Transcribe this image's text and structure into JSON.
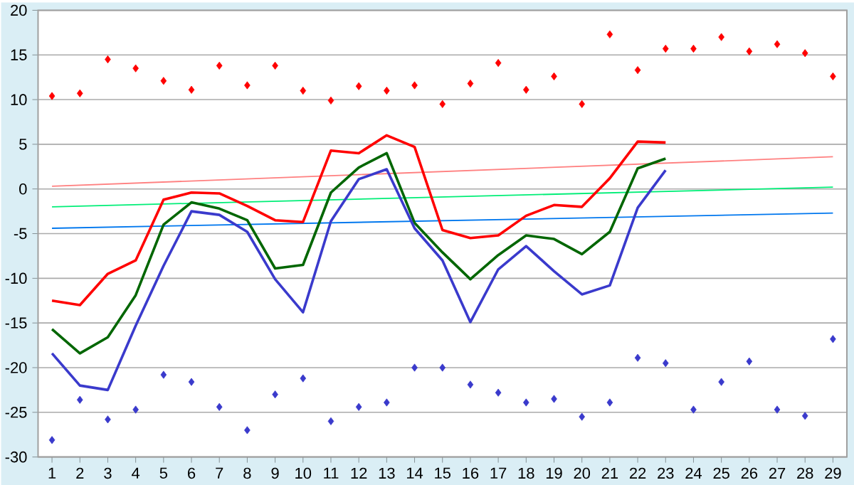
{
  "chart_data": {
    "type": "line",
    "x": [
      1,
      2,
      3,
      4,
      5,
      6,
      7,
      8,
      9,
      10,
      11,
      12,
      13,
      14,
      15,
      16,
      17,
      18,
      19,
      20,
      21,
      22,
      23,
      24,
      25,
      26,
      27,
      28,
      29
    ],
    "xlim": [
      0.5,
      29.5
    ],
    "xticks": [
      1,
      2,
      3,
      4,
      5,
      6,
      7,
      8,
      9,
      10,
      11,
      12,
      13,
      14,
      15,
      16,
      17,
      18,
      19,
      20,
      21,
      22,
      23,
      24,
      25,
      26,
      27,
      28,
      29
    ],
    "ylim": [
      -30,
      20
    ],
    "yticks": [
      -30,
      -25,
      -20,
      -15,
      -10,
      -5,
      0,
      5,
      10,
      15,
      20
    ],
    "grid": "y",
    "line_style": "solid",
    "series": [
      {
        "color": "#ff8080",
        "values": [
          0.3,
          null,
          null,
          null,
          null,
          null,
          null,
          null,
          null,
          null,
          null,
          null,
          null,
          null,
          null,
          null,
          null,
          null,
          null,
          null,
          null,
          null,
          null,
          null,
          null,
          null,
          null,
          null,
          3.6
        ]
      },
      {
        "color": "#00ee77",
        "values": [
          -2.0,
          null,
          null,
          null,
          null,
          null,
          null,
          null,
          null,
          null,
          null,
          null,
          null,
          null,
          null,
          null,
          null,
          null,
          null,
          null,
          null,
          null,
          null,
          null,
          null,
          null,
          null,
          null,
          0.2
        ]
      },
      {
        "color": "#0077ee",
        "values": [
          -4.4,
          null,
          null,
          null,
          null,
          null,
          null,
          null,
          null,
          null,
          null,
          null,
          null,
          null,
          null,
          null,
          null,
          null,
          null,
          null,
          null,
          null,
          null,
          null,
          null,
          null,
          null,
          null,
          -2.7
        ]
      },
      {
        "color": "#ff0000",
        "values": [
          -12.5,
          -13.0,
          -9.5,
          -8.0,
          -1.2,
          -0.4,
          -0.5,
          -1.9,
          -3.5,
          -3.7,
          4.3,
          4.0,
          6.0,
          4.7,
          -4.6,
          -5.5,
          -5.2,
          -3.0,
          -1.8,
          -2.0,
          1.2,
          5.3,
          5.2,
          null,
          null,
          null,
          null,
          null,
          null
        ]
      },
      {
        "color": "#006600",
        "values": [
          -15.7,
          -18.4,
          -16.6,
          -11.9,
          -4.0,
          -1.5,
          -2.2,
          -3.5,
          -8.9,
          -8.5,
          -0.4,
          2.4,
          4.0,
          -3.8,
          -7.1,
          -10.1,
          -7.4,
          -5.2,
          -5.6,
          -7.3,
          -4.8,
          2.3,
          3.4,
          null,
          null,
          null,
          null,
          null,
          null
        ]
      },
      {
        "color": "#3a3acc",
        "values": [
          -18.4,
          -22.0,
          -22.5,
          -15.3,
          -8.6,
          -2.5,
          -2.9,
          -4.8,
          -10.1,
          -13.8,
          -3.6,
          1.1,
          2.2,
          -4.4,
          -8.0,
          -14.9,
          -9.0,
          -6.4,
          -9.2,
          -11.8,
          -10.8,
          -2.1,
          2.1,
          null,
          null,
          null,
          null,
          null,
          null
        ]
      },
      {
        "type": "scatter",
        "marker": "diamond",
        "color": "#ff0000",
        "values": [
          10.4,
          10.7,
          14.5,
          13.5,
          12.1,
          11.1,
          13.8,
          11.6,
          13.8,
          11.0,
          9.9,
          11.5,
          11.0,
          11.6,
          9.5,
          11.8,
          14.1,
          11.1,
          12.6,
          9.5,
          17.3,
          13.3,
          15.7,
          15.7,
          17.0,
          15.4,
          16.2,
          15.2,
          12.6
        ]
      },
      {
        "type": "scatter",
        "marker": "diamond",
        "color": "#3a3acc",
        "values": [
          -28.1,
          -23.6,
          -25.8,
          -24.7,
          -20.8,
          -21.6,
          -24.4,
          -27.0,
          -23.0,
          -21.2,
          -26.0,
          -24.4,
          -23.9,
          -20.0,
          -20.0,
          -21.9,
          -22.8,
          -23.9,
          -23.5,
          -25.5,
          -23.9,
          -18.9,
          -19.5,
          -24.7,
          -21.6,
          -19.3,
          -24.7,
          -25.4,
          -16.8
        ]
      }
    ]
  }
}
